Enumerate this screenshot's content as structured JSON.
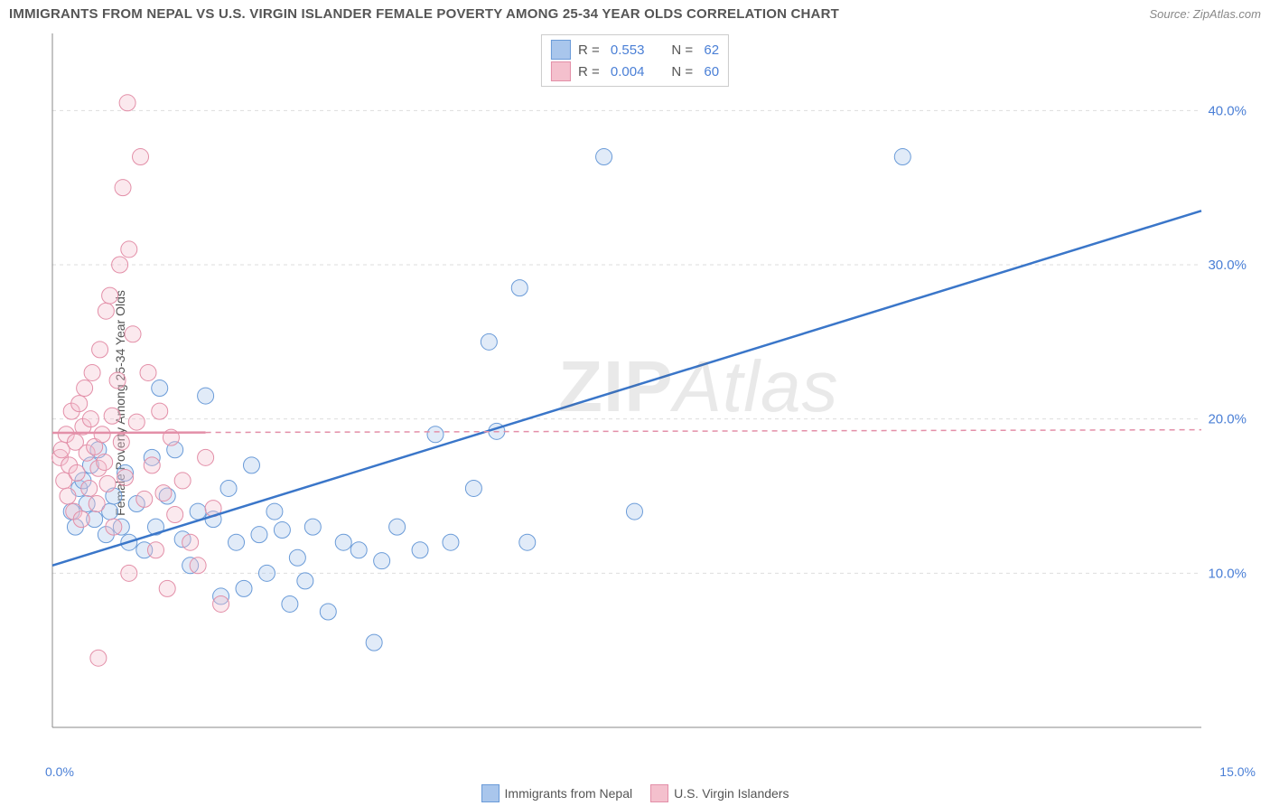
{
  "title": "IMMIGRANTS FROM NEPAL VS U.S. VIRGIN ISLANDER FEMALE POVERTY AMONG 25-34 YEAR OLDS CORRELATION CHART",
  "source_label": "Source: ",
  "source_value": "ZipAtlas.com",
  "y_axis_label": "Female Poverty Among 25-34 Year Olds",
  "watermark_zip": "ZIP",
  "watermark_atlas": "Atlas",
  "chart": {
    "type": "scatter",
    "background_color": "#ffffff",
    "grid_color": "#dddddd",
    "grid_dash": "4,4",
    "axis_color": "#888888",
    "xlim": [
      0,
      15
    ],
    "ylim": [
      0,
      45
    ],
    "y_ticks": [
      10,
      20,
      30,
      40
    ],
    "y_tick_labels": [
      "10.0%",
      "20.0%",
      "30.0%",
      "40.0%"
    ],
    "y_tick_color": "#4a7fd6",
    "y_tick_fontsize": 15,
    "x_tick_min_label": "0.0%",
    "x_tick_max_label": "15.0%",
    "x_tick_color": "#4a7fd6",
    "marker_radius": 9,
    "marker_stroke_width": 1,
    "marker_fill_opacity": 0.35,
    "series": [
      {
        "name": "Immigrants from Nepal",
        "color_fill": "#a9c6ec",
        "color_stroke": "#6a9bd8",
        "r_value": "0.553",
        "n_value": "62",
        "trend": {
          "x1": 0,
          "y1": 10.5,
          "x2": 15,
          "y2": 33.5,
          "color": "#3a76c9",
          "width": 2.5,
          "dash": ""
        },
        "points": [
          [
            0.25,
            14
          ],
          [
            0.3,
            13
          ],
          [
            0.35,
            15.5
          ],
          [
            0.4,
            16
          ],
          [
            0.45,
            14.5
          ],
          [
            0.5,
            17
          ],
          [
            0.55,
            13.5
          ],
          [
            0.6,
            18
          ],
          [
            0.7,
            12.5
          ],
          [
            0.75,
            14
          ],
          [
            0.8,
            15
          ],
          [
            0.9,
            13
          ],
          [
            0.95,
            16.5
          ],
          [
            1.0,
            12
          ],
          [
            1.1,
            14.5
          ],
          [
            1.2,
            11.5
          ],
          [
            1.3,
            17.5
          ],
          [
            1.35,
            13
          ],
          [
            1.4,
            22
          ],
          [
            1.5,
            15
          ],
          [
            1.6,
            18
          ],
          [
            1.7,
            12.2
          ],
          [
            1.8,
            10.5
          ],
          [
            1.9,
            14
          ],
          [
            2.0,
            21.5
          ],
          [
            2.1,
            13.5
          ],
          [
            2.2,
            8.5
          ],
          [
            2.3,
            15.5
          ],
          [
            2.4,
            12
          ],
          [
            2.5,
            9
          ],
          [
            2.6,
            17
          ],
          [
            2.7,
            12.5
          ],
          [
            2.8,
            10
          ],
          [
            2.9,
            14
          ],
          [
            3.0,
            12.8
          ],
          [
            3.1,
            8
          ],
          [
            3.2,
            11
          ],
          [
            3.3,
            9.5
          ],
          [
            3.4,
            13
          ],
          [
            3.6,
            7.5
          ],
          [
            3.8,
            12
          ],
          [
            4.0,
            11.5
          ],
          [
            4.2,
            5.5
          ],
          [
            4.3,
            10.8
          ],
          [
            4.5,
            13
          ],
          [
            4.8,
            11.5
          ],
          [
            5.0,
            19
          ],
          [
            5.2,
            12
          ],
          [
            5.5,
            15.5
          ],
          [
            5.7,
            25
          ],
          [
            5.8,
            19.2
          ],
          [
            6.1,
            28.5
          ],
          [
            6.2,
            12
          ],
          [
            7.2,
            37
          ],
          [
            7.6,
            14
          ],
          [
            11.1,
            37
          ]
        ]
      },
      {
        "name": "U.S. Virgin Islanders",
        "color_fill": "#f4c0cd",
        "color_stroke": "#e38fa8",
        "r_value": "0.004",
        "n_value": "60",
        "trend": {
          "x1": 0,
          "y1": 19.1,
          "x2": 15,
          "y2": 19.3,
          "color": "#e38fa8",
          "width": 1.5,
          "dash": "6,5"
        },
        "trend_solid_end_x": 2.0,
        "points": [
          [
            0.1,
            17.5
          ],
          [
            0.12,
            18
          ],
          [
            0.15,
            16
          ],
          [
            0.18,
            19
          ],
          [
            0.2,
            15
          ],
          [
            0.22,
            17
          ],
          [
            0.25,
            20.5
          ],
          [
            0.28,
            14
          ],
          [
            0.3,
            18.5
          ],
          [
            0.32,
            16.5
          ],
          [
            0.35,
            21
          ],
          [
            0.38,
            13.5
          ],
          [
            0.4,
            19.5
          ],
          [
            0.42,
            22
          ],
          [
            0.45,
            17.8
          ],
          [
            0.48,
            15.5
          ],
          [
            0.5,
            20
          ],
          [
            0.52,
            23
          ],
          [
            0.55,
            18.2
          ],
          [
            0.58,
            14.5
          ],
          [
            0.6,
            16.8
          ],
          [
            0.62,
            24.5
          ],
          [
            0.65,
            19
          ],
          [
            0.68,
            17.2
          ],
          [
            0.7,
            27
          ],
          [
            0.72,
            15.8
          ],
          [
            0.75,
            28
          ],
          [
            0.78,
            20.2
          ],
          [
            0.8,
            13
          ],
          [
            0.85,
            22.5
          ],
          [
            0.88,
            30
          ],
          [
            0.9,
            18.5
          ],
          [
            0.92,
            35
          ],
          [
            0.95,
            16.2
          ],
          [
            0.98,
            40.5
          ],
          [
            1.0,
            31
          ],
          [
            1.05,
            25.5
          ],
          [
            1.1,
            19.8
          ],
          [
            1.15,
            37
          ],
          [
            1.2,
            14.8
          ],
          [
            1.25,
            23
          ],
          [
            1.3,
            17
          ],
          [
            1.35,
            11.5
          ],
          [
            1.4,
            20.5
          ],
          [
            1.45,
            15.2
          ],
          [
            1.5,
            9
          ],
          [
            1.55,
            18.8
          ],
          [
            1.6,
            13.8
          ],
          [
            1.7,
            16
          ],
          [
            1.8,
            12
          ],
          [
            1.9,
            10.5
          ],
          [
            2.0,
            17.5
          ],
          [
            2.1,
            14.2
          ],
          [
            2.2,
            8
          ],
          [
            0.6,
            4.5
          ],
          [
            1.0,
            10
          ]
        ]
      }
    ],
    "top_legend": {
      "r_label": "R  =",
      "n_label": "N  ="
    },
    "bottom_legend_labels": [
      "Immigrants from Nepal",
      "U.S. Virgin Islanders"
    ]
  }
}
